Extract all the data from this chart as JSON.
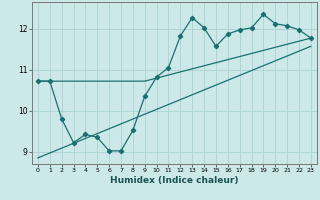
{
  "xlabel": "Humidex (Indice chaleur)",
  "bg_color": "#cce8e8",
  "grid_color": "#aad2d2",
  "line_color": "#1a7070",
  "xlim": [
    -0.5,
    23.5
  ],
  "ylim": [
    8.7,
    12.65
  ],
  "xticks": [
    0,
    1,
    2,
    3,
    4,
    5,
    6,
    7,
    8,
    9,
    10,
    11,
    12,
    13,
    14,
    15,
    16,
    17,
    18,
    19,
    20,
    21,
    22,
    23
  ],
  "yticks": [
    9,
    10,
    11,
    12
  ],
  "line1_x": [
    0,
    1,
    2,
    3,
    4,
    5,
    6,
    7,
    8,
    9,
    10,
    11,
    12,
    13,
    14,
    15,
    16,
    17,
    18,
    19,
    20,
    21,
    22,
    23
  ],
  "line1_y": [
    10.72,
    10.72,
    9.8,
    9.22,
    9.42,
    9.35,
    9.02,
    9.02,
    9.52,
    10.35,
    10.82,
    11.05,
    11.82,
    12.27,
    12.02,
    11.57,
    11.87,
    11.97,
    12.02,
    12.35,
    12.12,
    12.07,
    11.97,
    11.77
  ],
  "line2_x": [
    0,
    1,
    9,
    23
  ],
  "line2_y": [
    10.72,
    10.72,
    10.72,
    11.77
  ],
  "line3_x": [
    0,
    23
  ],
  "line3_y": [
    8.85,
    11.57
  ]
}
